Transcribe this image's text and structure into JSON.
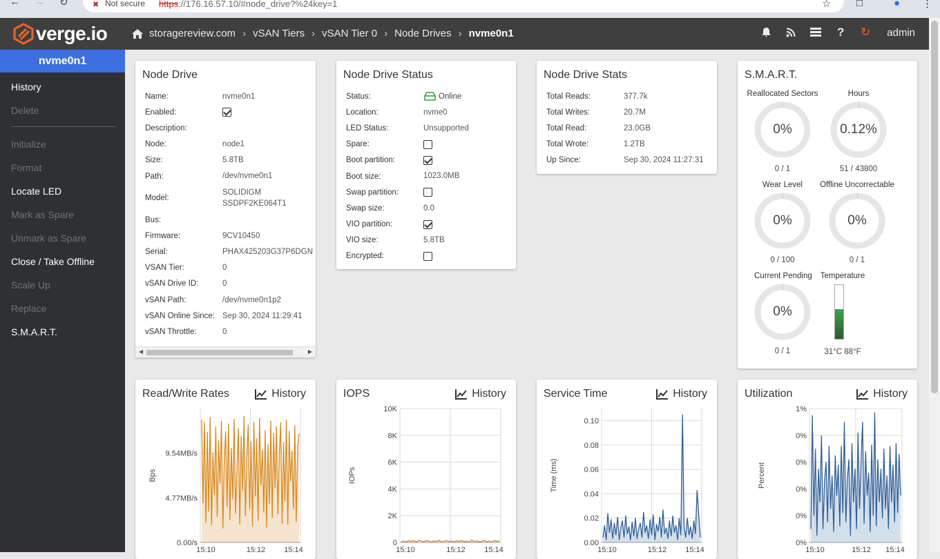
{
  "browser": {
    "security_label": "Not secure",
    "url_scheme": "https",
    "url_rest": "://176.16.57.10/#node_drive?%24key=1"
  },
  "header": {
    "logo_text": "verge.io",
    "breadcrumbs": [
      "storagereview.com",
      "vSAN Tiers",
      "vSAN Tier 0",
      "Node Drives",
      "nvme0n1"
    ],
    "user": "admin",
    "icons": [
      "bell-icon",
      "rss-icon",
      "list-icon",
      "help-icon",
      "refresh-icon"
    ]
  },
  "sidebar": {
    "title": "nvme0n1",
    "items": [
      {
        "label": "History",
        "enabled": true
      },
      {
        "label": "Delete",
        "enabled": false
      },
      {
        "label": "Initialize",
        "enabled": false
      },
      {
        "label": "Format",
        "enabled": false
      },
      {
        "label": "Locate LED",
        "enabled": true
      },
      {
        "label": "Mark as Spare",
        "enabled": false
      },
      {
        "label": "Unmark as Spare",
        "enabled": false
      },
      {
        "label": "Close / Take Offline",
        "enabled": true
      },
      {
        "label": "Scale Up",
        "enabled": false
      },
      {
        "label": "Replace",
        "enabled": false
      },
      {
        "label": "S.M.A.R.T.",
        "enabled": true
      }
    ]
  },
  "node_drive": {
    "title": "Node Drive",
    "rows": [
      {
        "k": "Name:",
        "v": "nvme0n1"
      },
      {
        "k": "Enabled:",
        "v": "",
        "check": true
      },
      {
        "k": "Description:",
        "v": ""
      },
      {
        "k": "Node:",
        "v": "node1"
      },
      {
        "k": "Size:",
        "v": "5.8TB"
      },
      {
        "k": "Path:",
        "v": "/dev/nvme0n1"
      },
      {
        "k": "Model:",
        "v": "SOLIDIGM\nSSDPF2KE064T1",
        "tall": true
      },
      {
        "k": "Bus:",
        "v": ""
      },
      {
        "k": "Firmware:",
        "v": "9CV10450"
      },
      {
        "k": "Serial:",
        "v": "PHAX425203G37P6DGN"
      },
      {
        "k": "VSAN Tier:",
        "v": "0"
      },
      {
        "k": "vSAN Drive ID:",
        "v": "0"
      },
      {
        "k": "vSAN Path:",
        "v": "/dev/nvme0n1p2"
      },
      {
        "k": "vSAN Online Since:",
        "v": "Sep 30, 2024 11:29:41"
      },
      {
        "k": "vSAN Throttle:",
        "v": "0"
      }
    ]
  },
  "status": {
    "title": "Node Drive Status",
    "rows": [
      {
        "k": "Status:",
        "v": "Online",
        "icon": "drive-online-icon"
      },
      {
        "k": "Location:",
        "v": "nvme0"
      },
      {
        "k": "LED Status:",
        "v": "Unsupported"
      },
      {
        "k": "Spare:",
        "v": "",
        "check": false
      },
      {
        "k": "Boot partition:",
        "v": "",
        "check": true
      },
      {
        "k": "Boot size:",
        "v": "1023.0MB"
      },
      {
        "k": "Swap partition:",
        "v": "",
        "check": false
      },
      {
        "k": "Swap size:",
        "v": "0.0"
      },
      {
        "k": "VIO partition:",
        "v": "",
        "check": true
      },
      {
        "k": "VIO size:",
        "v": "5.8TB"
      },
      {
        "k": "Encrypted:",
        "v": "",
        "check": false
      }
    ],
    "online_color": "#2e9e3e"
  },
  "stats": {
    "title": "Node Drive Stats",
    "rows": [
      {
        "k": "Total Reads:",
        "v": "377.7k"
      },
      {
        "k": "Total Writes:",
        "v": "20.7M"
      },
      {
        "k": "Total Read:",
        "v": "23.0GB"
      },
      {
        "k": "Total Wrote:",
        "v": "1.2TB"
      },
      {
        "k": "Up Since:",
        "v": "Sep 30, 2024 11:27:31"
      }
    ]
  },
  "smart": {
    "title": "S.M.A.R.T.",
    "gauges": [
      {
        "label": "Reallocated Sectors",
        "pct": "0%",
        "sub": "0 / 1",
        "fraction": 0
      },
      {
        "label": "Hours",
        "pct": "0.12%",
        "sub": "51 / 43800",
        "fraction": 0.0012
      },
      {
        "label": "Wear Level",
        "pct": "0%",
        "sub": "0 / 100",
        "fraction": 0
      },
      {
        "label": "Offline Uncorrectable",
        "pct": "0%",
        "sub": "0 / 1",
        "fraction": 0
      },
      {
        "label": "Current Pending",
        "pct": "0%",
        "sub": "0 / 1",
        "fraction": 0
      }
    ],
    "temperature": {
      "label": "Temperature",
      "value": "31°C 88°F",
      "fraction": 0.55,
      "color": "#3fa34d"
    }
  },
  "history_label": "History",
  "chart_data": [
    {
      "type": "area",
      "title": "Read/Write Rates",
      "ylabel": "Bps",
      "yticks": [
        "0.00/s",
        "4.77MB/s",
        "9.54MB/s"
      ],
      "ytick_values": [
        0,
        4.77,
        9.54
      ],
      "ylim": [
        0,
        14.3
      ],
      "xticks": [
        "15:10",
        "15:12",
        "15:14"
      ],
      "color": "#d88a1f",
      "fill": "#f6e4cf",
      "series": [
        {
          "values": [
            13.1,
            4.2,
            12.9,
            2.1,
            11.8,
            3.3,
            13.4,
            1.8,
            9.6,
            5.1,
            12.4,
            2.7,
            10.9,
            6.3,
            13.0,
            1.5,
            8.7,
            11.9,
            3.8,
            12.7,
            2.4,
            10.1,
            4.6,
            13.2,
            3.1,
            7.9,
            12.2,
            1.9,
            11.4,
            5.5,
            13.5,
            2.8,
            9.2,
            12.6,
            3.5,
            10.8,
            1.7,
            12.9,
            4.9,
            11.1,
            2.3,
            13.3,
            6.1,
            9.9,
            3.2,
            12.0,
            1.6,
            10.5,
            4.1,
            13.0,
            2.6,
            11.7,
            5.8,
            12.4,
            3.0,
            9.4,
            12.8,
            2.0,
            10.7,
            4.4,
            13.1,
            1.9,
            11.9,
            6.5,
            9.8,
            3.6,
            12.5,
            2.2,
            10.3,
            11.6
          ]
        }
      ]
    },
    {
      "type": "line",
      "title": "IOPS",
      "ylabel": "IOPs",
      "yticks": [
        "0",
        "2K",
        "4K",
        "6K",
        "8K",
        "10K"
      ],
      "ytick_values": [
        0,
        2000,
        4000,
        6000,
        8000,
        10000
      ],
      "ylim": [
        0,
        10000
      ],
      "xticks": [
        "15:10",
        "15:12",
        "15:14"
      ],
      "color": "#d88a1f",
      "fill": "#f6e4cf",
      "series": [
        {
          "values": [
            60,
            110,
            40,
            150,
            80,
            130,
            50,
            170,
            90,
            60,
            140,
            100,
            30,
            120,
            70,
            160,
            50,
            90,
            140,
            60,
            110,
            40,
            130,
            80,
            150,
            60,
            100,
            40,
            170,
            70,
            120,
            50,
            90,
            140,
            60,
            110,
            30,
            150,
            80,
            120
          ]
        }
      ]
    },
    {
      "type": "area",
      "title": "Service Time",
      "ylabel": "Time (ms)",
      "yticks": [
        "0.00",
        "0.02",
        "0.04",
        "0.06",
        "0.08",
        "0.10"
      ],
      "ytick_values": [
        0,
        0.02,
        0.04,
        0.06,
        0.08,
        0.1
      ],
      "ylim": [
        0,
        0.11
      ],
      "xticks": [
        "15:10",
        "15:12",
        "15:14"
      ],
      "color": "#2f5f96",
      "fill": "#d4dfec",
      "series": [
        {
          "values": [
            0.004,
            0.014,
            0.002,
            0.024,
            0.008,
            0.019,
            0.003,
            0.016,
            0.006,
            0.021,
            0.002,
            0.012,
            0.018,
            0.004,
            0.022,
            0.007,
            0.013,
            0.002,
            0.017,
            0.005,
            0.02,
            0.003,
            0.011,
            0.016,
            0.004,
            0.025,
            0.008,
            0.014,
            0.003,
            0.019,
            0.006,
            0.023,
            0.002,
            0.015,
            0.009,
            0.021,
            0.004,
            0.027,
            0.007,
            0.012,
            0.003,
            0.018,
            0.005,
            0.022,
            0.008,
            0.014,
            0.002,
            0.02,
            0.006,
            0.105,
            0.012,
            0.004,
            0.02,
            0.006,
            0.013,
            0.003,
            0.018,
            0.007,
            0.043,
            0.022,
            0.004
          ]
        }
      ]
    },
    {
      "type": "area",
      "title": "Utilization",
      "ylabel": "Percent",
      "yticks": [
        "0%",
        "0%",
        "0%",
        "0%",
        "0%",
        "1%"
      ],
      "ytick_values": [
        0,
        0.2,
        0.4,
        0.6,
        0.8,
        1.0
      ],
      "ylim": [
        0,
        1.0
      ],
      "xticks": [
        "15:10",
        "15:12",
        "15:14"
      ],
      "color": "#2f5f96",
      "fill": "#d4dfec",
      "series": [
        {
          "values": [
            0.1,
            0.95,
            0.2,
            0.7,
            0.05,
            0.55,
            0.3,
            0.8,
            0.1,
            0.45,
            0.6,
            0.15,
            0.72,
            0.25,
            0.5,
            0.08,
            0.65,
            0.35,
            0.58,
            0.12,
            0.72,
            0.22,
            0.9,
            0.15,
            0.48,
            0.62,
            0.05,
            0.74,
            0.3,
            0.55,
            0.1,
            0.82,
            0.25,
            0.6,
            0.9,
            0.14,
            0.68,
            0.35,
            0.52,
            0.08,
            0.73,
            0.2,
            0.97,
            0.12,
            0.62,
            0.3,
            0.55,
            0.18,
            0.7,
            0.25,
            0.5,
            0.1,
            0.72,
            0.3,
            0.58,
            0.15,
            0.74,
            0.22,
            0.66,
            0.35
          ]
        }
      ]
    }
  ]
}
